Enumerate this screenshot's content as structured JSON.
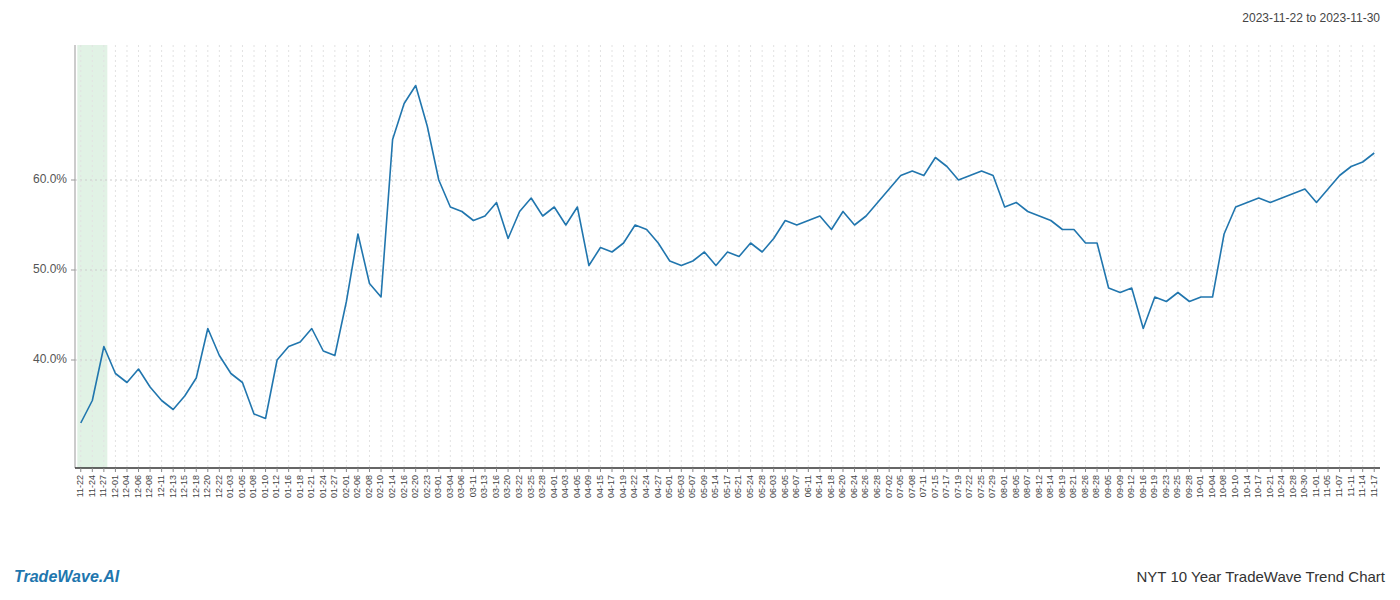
{
  "chart_data": {
    "type": "line",
    "title": "NYT 10 Year TradeWave Trend Chart",
    "subtitle": "2023-11-22 to 2023-11-30",
    "annotations": [
      "TradeWave.AI"
    ],
    "color": "#2176ae",
    "highlight": {
      "from": "11-22",
      "to": "11-27",
      "color": "#d4edda"
    },
    "grid": true,
    "ylim": [
      28,
      75
    ],
    "yticks": [
      {
        "value": 40,
        "label": "40.0%"
      },
      {
        "value": 50,
        "label": "50.0%"
      },
      {
        "value": 60,
        "label": "60.0%"
      }
    ],
    "categories": [
      "11-22",
      "11-24",
      "11-27",
      "12-01",
      "12-04",
      "12-06",
      "12-08",
      "12-11",
      "12-13",
      "12-15",
      "12-18",
      "12-20",
      "12-22",
      "01-03",
      "01-05",
      "01-08",
      "01-10",
      "01-12",
      "01-16",
      "01-18",
      "01-21",
      "01-24",
      "01-27",
      "02-01",
      "02-06",
      "02-08",
      "02-10",
      "02-14",
      "02-16",
      "02-20",
      "02-23",
      "03-01",
      "03-04",
      "03-06",
      "03-11",
      "03-13",
      "03-16",
      "03-20",
      "03-22",
      "03-25",
      "03-28",
      "04-01",
      "04-03",
      "04-05",
      "04-09",
      "04-15",
      "04-17",
      "04-19",
      "04-22",
      "04-24",
      "04-27",
      "05-01",
      "05-03",
      "05-07",
      "05-09",
      "05-14",
      "05-17",
      "05-21",
      "05-24",
      "05-28",
      "06-03",
      "06-05",
      "06-07",
      "06-11",
      "06-14",
      "06-18",
      "06-20",
      "06-24",
      "06-26",
      "06-28",
      "07-02",
      "07-05",
      "07-08",
      "07-11",
      "07-15",
      "07-17",
      "07-19",
      "07-22",
      "07-25",
      "07-29",
      "08-01",
      "08-05",
      "08-07",
      "08-12",
      "08-14",
      "08-19",
      "08-21",
      "08-26",
      "08-28",
      "09-05",
      "09-09",
      "09-12",
      "09-16",
      "09-19",
      "09-23",
      "09-25",
      "09-28",
      "10-01",
      "10-04",
      "10-08",
      "10-10",
      "10-14",
      "10-17",
      "10-21",
      "10-24",
      "10-28",
      "10-30",
      "11-01",
      "11-05",
      "11-07",
      "11-11",
      "11-14",
      "11-17"
    ],
    "values": [
      33.0,
      35.5,
      41.5,
      38.5,
      37.5,
      39.0,
      37.0,
      35.5,
      34.5,
      36.0,
      38.0,
      43.5,
      40.5,
      38.5,
      37.5,
      34.0,
      33.5,
      40.0,
      41.5,
      42.0,
      43.5,
      41.0,
      40.5,
      46.5,
      54.0,
      48.5,
      47.0,
      64.5,
      68.5,
      70.5,
      66.0,
      60.0,
      57.0,
      56.5,
      55.5,
      56.0,
      57.5,
      53.5,
      56.5,
      58.0,
      56.0,
      57.0,
      55.0,
      57.0,
      50.5,
      52.5,
      52.0,
      53.0,
      55.0,
      54.5,
      53.0,
      51.0,
      50.5,
      51.0,
      52.0,
      50.5,
      52.0,
      51.5,
      53.0,
      52.0,
      53.5,
      55.5,
      55.0,
      55.5,
      56.0,
      54.5,
      56.5,
      55.0,
      56.0,
      57.5,
      59.0,
      60.5,
      61.0,
      60.5,
      62.5,
      61.5,
      60.0,
      60.5,
      61.0,
      60.5,
      57.0,
      57.5,
      56.5,
      56.0,
      55.5,
      54.5,
      54.5,
      53.0,
      53.0,
      48.0,
      47.5,
      48.0,
      43.5,
      47.0,
      46.5,
      47.5,
      46.5,
      47.0,
      47.0,
      54.0,
      57.0,
      57.5,
      58.0,
      57.5,
      58.0,
      58.5,
      59.0,
      57.5,
      59.0,
      60.5,
      61.5,
      62.0,
      63.0
    ]
  }
}
